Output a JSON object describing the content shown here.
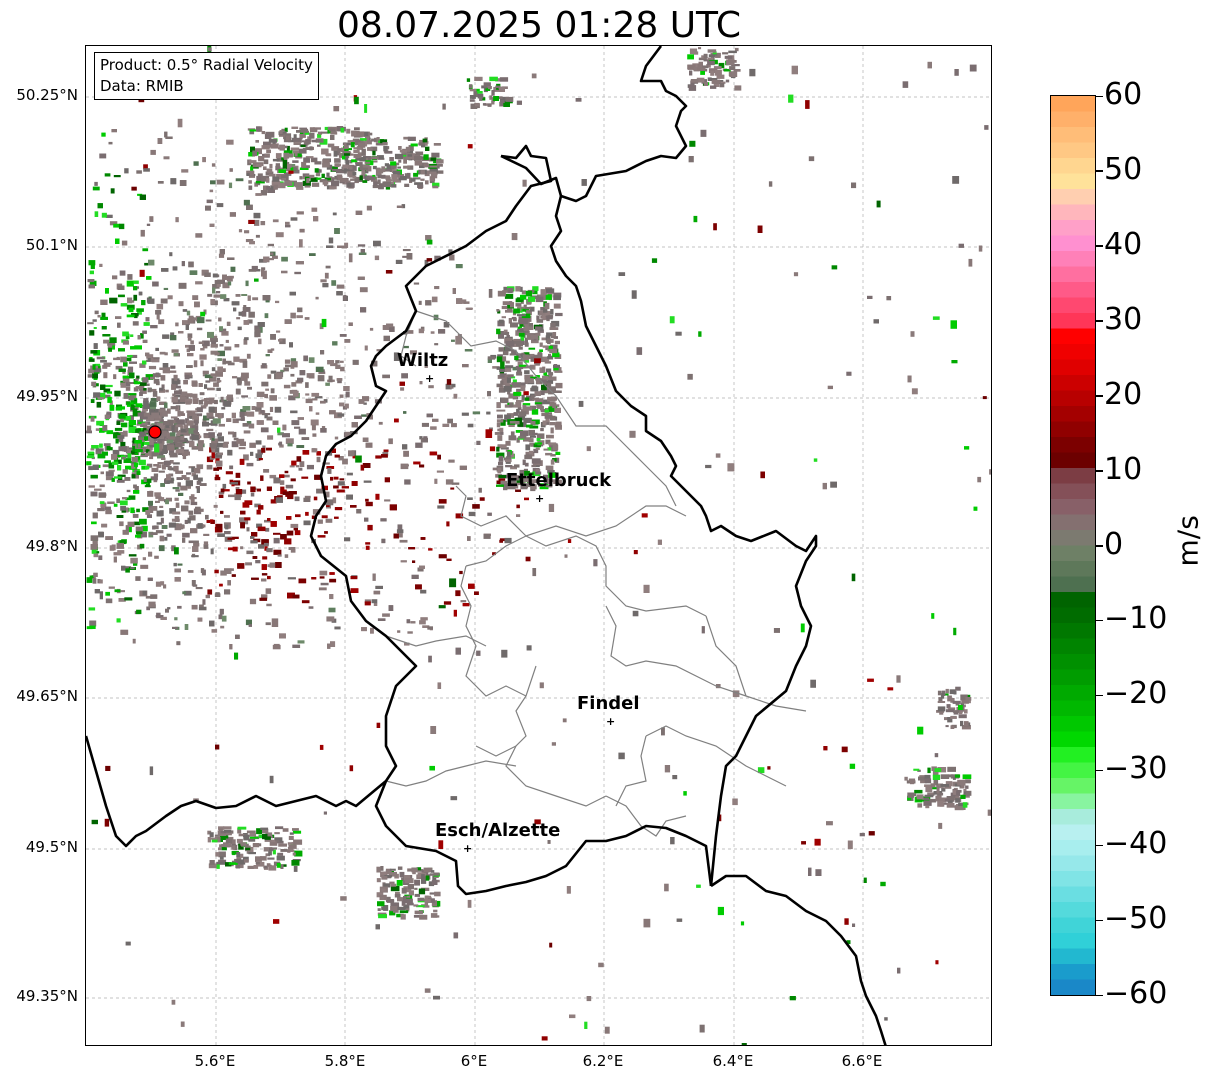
{
  "title": "08.07.2025 01:28 UTC",
  "info": {
    "product": "Product: 0.5° Radial Velocity",
    "data": "Data: RMIB"
  },
  "latitude_labels": [
    "50.25°N",
    "50.1°N",
    "49.95°N",
    "49.8°N",
    "49.65°N",
    "49.5°N",
    "49.35°N"
  ],
  "longitude_labels": [
    "5.6°E",
    "5.8°E",
    "6°E",
    "6.2°E",
    "6.4°E",
    "6.6°E"
  ],
  "cities": [
    {
      "name": "Wiltz"
    },
    {
      "name": "Ettelbruck"
    },
    {
      "name": "Findel"
    },
    {
      "name": "Esch/Alzette"
    }
  ],
  "colorbar": {
    "unit": "m/s",
    "ticks": [
      "60",
      "50",
      "40",
      "30",
      "20",
      "10",
      "0",
      "−10",
      "−20",
      "−30",
      "−40",
      "−50",
      "−60"
    ],
    "min": -60,
    "max": 60
  },
  "map_data": {
    "radar_site_marker_color": "#ff0000",
    "border_color": "#000000",
    "canton_color": "#808080"
  }
}
